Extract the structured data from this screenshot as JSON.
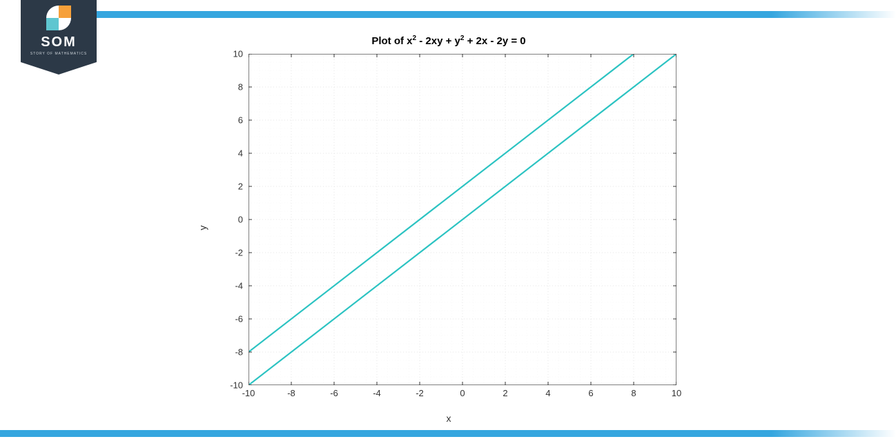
{
  "brand": {
    "name": "SOM",
    "tagline": "STORY OF MATHEMATICS",
    "badge_bg": "#2c3947",
    "accent_bar_color": "#35a6df"
  },
  "chart": {
    "type": "line",
    "title_html": "Plot of x<sup>2</sup> - 2xy + y<sup>2</sup> + 2x - 2y = 0",
    "xlabel": "x",
    "ylabel": "y",
    "xlim": [
      -10,
      10
    ],
    "ylim": [
      -10,
      10
    ],
    "xticks": [
      -10,
      -8,
      -6,
      -4,
      -2,
      0,
      2,
      4,
      6,
      8,
      10
    ],
    "yticks": [
      -10,
      -8,
      -6,
      -4,
      -2,
      0,
      2,
      4,
      6,
      8,
      10
    ],
    "grid_major_color": "#e6e6e6",
    "grid_minor_step": 0.5,
    "grid_minor_color": "#f3f3f3",
    "axis_box_color": "#808080",
    "background_color": "#ffffff",
    "line_color": "#2cc3c2",
    "line_width": 2.2,
    "series": [
      {
        "name": "y = x",
        "points": [
          [
            -10,
            -10
          ],
          [
            10,
            10
          ]
        ]
      },
      {
        "name": "y = x + 2",
        "points": [
          [
            -10,
            -8
          ],
          [
            8,
            10
          ]
        ]
      }
    ],
    "tick_fontsize": 13,
    "label_fontsize": 14,
    "title_fontsize": 15
  }
}
